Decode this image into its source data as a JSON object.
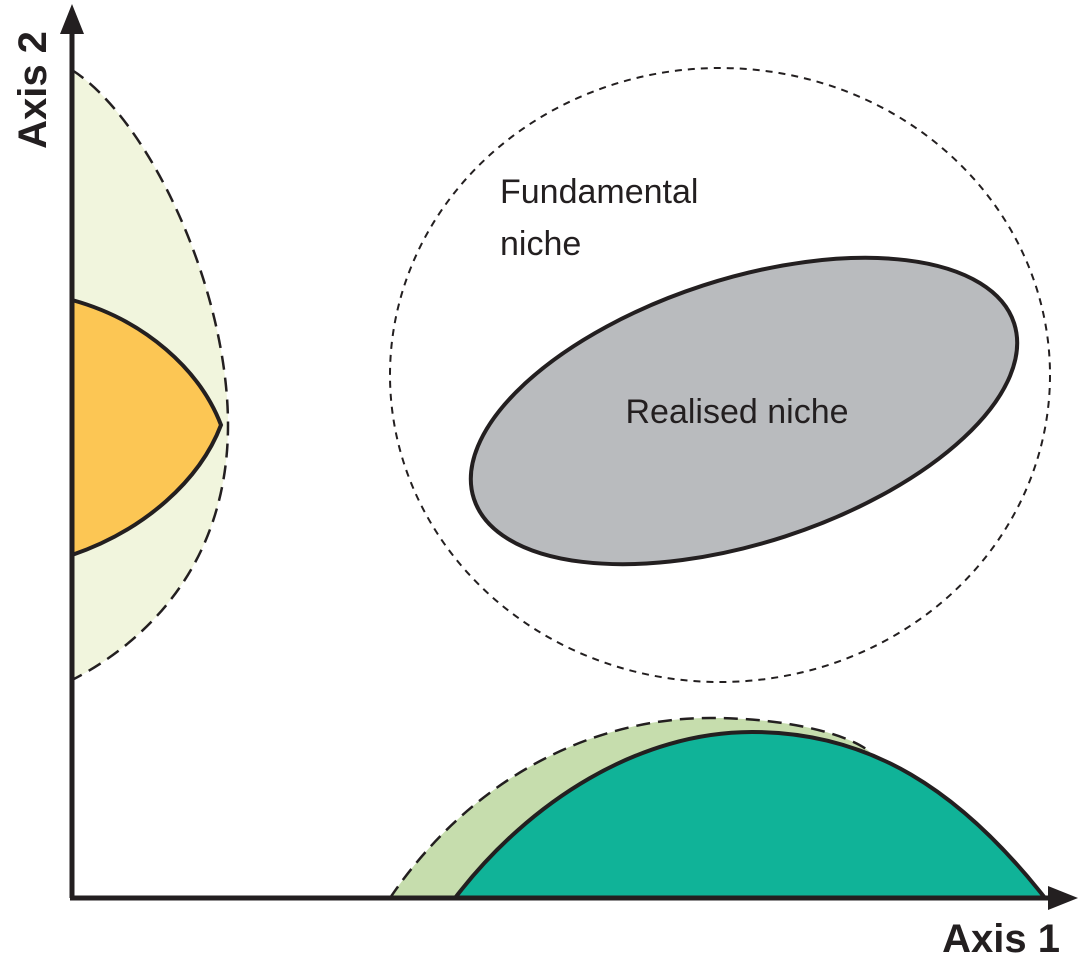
{
  "axes": {
    "x_label": "Axis 1",
    "y_label": "Axis 2"
  },
  "labels": {
    "fundamental_line1": "Fundamental",
    "fundamental_line2": "niche",
    "realised": "Realised niche"
  },
  "colors": {
    "axis": "#231f20",
    "left_fundamental_fill": "#f1f5dd",
    "left_realised_fill": "#fcc654",
    "bottom_fundamental_fill": "#c6ddad",
    "bottom_realised_fill": "#10b398",
    "ellipse_fill": "#b9bbbe"
  }
}
